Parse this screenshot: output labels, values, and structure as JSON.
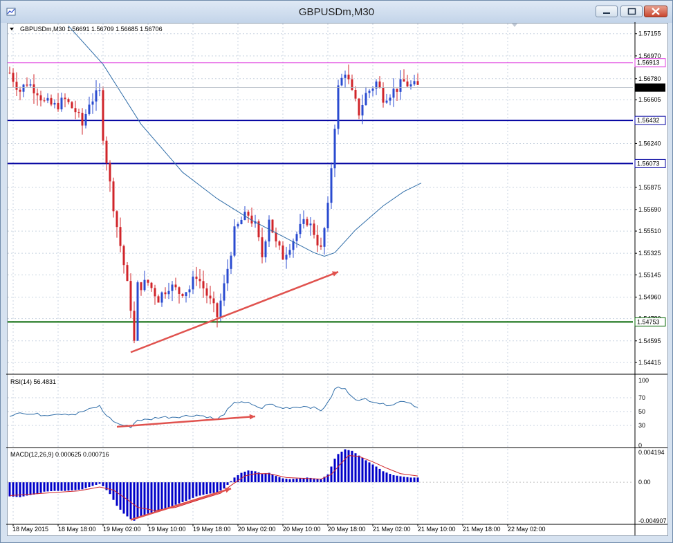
{
  "window": {
    "title": "GBPUSDm,M30"
  },
  "colors": {
    "bull": "#2a4bd0",
    "bear": "#d0242a",
    "ma": "#2f6da8",
    "magenta_level": "#e040e0",
    "blue_level": "#0000a0",
    "green_level": "#006400",
    "arrow": "#e0524e",
    "rsi": "#2f6da8",
    "macd_hist": "#0000c8",
    "macd_signal": "#d0242a",
    "grid": "#c8d3e0"
  },
  "chart_data": [
    {
      "type": "candlestick",
      "header": "GBPUSDm,M30  1.56691 1.56709 1.56685 1.56706",
      "ylim": [
        1.5434,
        1.5724
      ],
      "yticks": [
        "1.57155",
        "1.56970",
        "1.56780",
        "1.56605",
        "1.56240",
        "1.55875",
        "1.55690",
        "1.55510",
        "1.55325",
        "1.55145",
        "1.54960",
        "1.54780",
        "1.54595",
        "1.54415"
      ],
      "xticks": [
        "18 May 2015",
        "18 May 18:00",
        "19 May 02:00",
        "19 May 10:00",
        "19 May 18:00",
        "20 May 02:00",
        "20 May 10:00",
        "20 May 18:00",
        "21 May 02:00",
        "21 May 10:00",
        "21 May 18:00",
        "22 May 02:00"
      ],
      "candles_x_range": [
        0,
        118
      ],
      "close_path": [
        [
          0,
          1.5683
        ],
        [
          3,
          1.5668
        ],
        [
          5,
          1.5675
        ],
        [
          8,
          1.5668
        ],
        [
          10,
          1.5658
        ],
        [
          13,
          1.5655
        ],
        [
          16,
          1.566
        ],
        [
          19,
          1.5651
        ],
        [
          21,
          1.5639
        ],
        [
          23,
          1.5659
        ],
        [
          26,
          1.5666
        ],
        [
          27,
          1.5631
        ],
        [
          29,
          1.559
        ],
        [
          31,
          1.5555
        ],
        [
          33,
          1.5523
        ],
        [
          35,
          1.5488
        ],
        [
          36,
          1.5458
        ],
        [
          37,
          1.5505
        ],
        [
          40,
          1.5508
        ],
        [
          43,
          1.5495
        ],
        [
          46,
          1.5506
        ],
        [
          49,
          1.55
        ],
        [
          52,
          1.5503
        ],
        [
          54,
          1.5515
        ],
        [
          57,
          1.5498
        ],
        [
          60,
          1.548
        ],
        [
          62,
          1.5505
        ],
        [
          65,
          1.555
        ],
        [
          67,
          1.556
        ],
        [
          69,
          1.5565
        ],
        [
          71,
          1.5555
        ],
        [
          73,
          1.553
        ],
        [
          75,
          1.5563
        ],
        [
          77,
          1.554
        ],
        [
          79,
          1.553
        ],
        [
          81,
          1.554
        ],
        [
          84,
          1.5553
        ],
        [
          86,
          1.556
        ],
        [
          88,
          1.555
        ],
        [
          90,
          1.5535
        ],
        [
          92,
          1.557
        ],
        [
          94,
          1.564
        ],
        [
          95,
          1.567
        ],
        [
          97,
          1.5685
        ],
        [
          99,
          1.5665
        ],
        [
          101,
          1.565
        ],
        [
          103,
          1.5665
        ],
        [
          106,
          1.5675
        ],
        [
          108,
          1.5663
        ],
        [
          111,
          1.5668
        ],
        [
          114,
          1.5675
        ],
        [
          116,
          1.5672
        ],
        [
          118,
          1.5671
        ]
      ],
      "moving_average": [
        [
          17,
          1.5722
        ],
        [
          27,
          1.569
        ],
        [
          38,
          1.564
        ],
        [
          50,
          1.56
        ],
        [
          60,
          1.5578
        ],
        [
          70,
          1.556
        ],
        [
          80,
          1.5545
        ],
        [
          88,
          1.5533
        ],
        [
          91,
          1.553
        ],
        [
          94,
          1.5533
        ],
        [
          100,
          1.5552
        ],
        [
          108,
          1.5572
        ],
        [
          114,
          1.5584
        ],
        [
          119,
          1.5591
        ]
      ],
      "levels": [
        {
          "price": 1.56913,
          "label": "1.56913",
          "color": "magenta_level",
          "width": 1
        },
        {
          "price": 1.56432,
          "label": "1.56432",
          "color": "blue_level",
          "width": 2
        },
        {
          "price": 1.56073,
          "label": "1.56073",
          "color": "blue_level",
          "width": 2
        },
        {
          "price": 1.54753,
          "label": "1.54753",
          "color": "green_level",
          "width": 2
        }
      ],
      "current_price": {
        "price": 1.56706,
        "label": "1.56706"
      },
      "trendline": {
        "from": [
          35,
          1.545
        ],
        "to": [
          95,
          1.5517
        ]
      }
    },
    {
      "type": "line",
      "name": "RSI(14) 56.4831",
      "ylim": [
        0,
        100
      ],
      "yticks": [
        "100",
        "70",
        "50",
        "30",
        "0"
      ],
      "values_path": [
        [
          0,
          44
        ],
        [
          3,
          50
        ],
        [
          5,
          46
        ],
        [
          8,
          46
        ],
        [
          10,
          45
        ],
        [
          13,
          47
        ],
        [
          16,
          47
        ],
        [
          19,
          46
        ],
        [
          21,
          50
        ],
        [
          23,
          53
        ],
        [
          26,
          58
        ],
        [
          27,
          50
        ],
        [
          29,
          40
        ],
        [
          31,
          33
        ],
        [
          33,
          30
        ],
        [
          35,
          28
        ],
        [
          36,
          33
        ],
        [
          37,
          38
        ],
        [
          40,
          38
        ],
        [
          43,
          42
        ],
        [
          46,
          42
        ],
        [
          49,
          43
        ],
        [
          52,
          44
        ],
        [
          54,
          45
        ],
        [
          57,
          43
        ],
        [
          60,
          38
        ],
        [
          62,
          47
        ],
        [
          65,
          62
        ],
        [
          67,
          65
        ],
        [
          69,
          62
        ],
        [
          71,
          57
        ],
        [
          73,
          55
        ],
        [
          75,
          62
        ],
        [
          77,
          57
        ],
        [
          79,
          55
        ],
        [
          81,
          56
        ],
        [
          84,
          57
        ],
        [
          86,
          58
        ],
        [
          88,
          55
        ],
        [
          90,
          52
        ],
        [
          92,
          62
        ],
        [
          94,
          82
        ],
        [
          95,
          85
        ],
        [
          97,
          82
        ],
        [
          99,
          73
        ],
        [
          101,
          65
        ],
        [
          103,
          68
        ],
        [
          106,
          64
        ],
        [
          108,
          60
        ],
        [
          111,
          61
        ],
        [
          114,
          66
        ],
        [
          116,
          62
        ],
        [
          118,
          56
        ]
      ],
      "trendline": {
        "from": [
          31,
          28
        ],
        "to": [
          71,
          43
        ]
      }
    },
    {
      "type": "bar",
      "name": "MACD(12,26,9) 0.000625 0.000716",
      "ylim": [
        -0.0051,
        0.00425
      ],
      "yticks": [
        "0.004194",
        "0.00",
        "-0.004907"
      ],
      "histogram_path": [
        [
          0,
          -0.0018
        ],
        [
          3,
          -0.0019
        ],
        [
          5,
          -0.0017
        ],
        [
          8,
          -0.0015
        ],
        [
          10,
          -0.0012
        ],
        [
          13,
          -0.0011
        ],
        [
          16,
          -0.0011
        ],
        [
          19,
          -0.001
        ],
        [
          21,
          -0.0009
        ],
        [
          23,
          -0.0006
        ],
        [
          26,
          -0.0002
        ],
        [
          27,
          -0.0005
        ],
        [
          29,
          -0.0015
        ],
        [
          31,
          -0.003
        ],
        [
          33,
          -0.004
        ],
        [
          35,
          -0.0047
        ],
        [
          36,
          -0.0049
        ],
        [
          37,
          -0.0045
        ],
        [
          40,
          -0.004
        ],
        [
          43,
          -0.0036
        ],
        [
          46,
          -0.0032
        ],
        [
          49,
          -0.0027
        ],
        [
          52,
          -0.0022
        ],
        [
          54,
          -0.0018
        ],
        [
          57,
          -0.0015
        ],
        [
          60,
          -0.0013
        ],
        [
          62,
          -0.0008
        ],
        [
          65,
          0.0006
        ],
        [
          67,
          0.0012
        ],
        [
          69,
          0.0015
        ],
        [
          71,
          0.0014
        ],
        [
          73,
          0.0011
        ],
        [
          75,
          0.0012
        ],
        [
          77,
          0.0008
        ],
        [
          79,
          0.0005
        ],
        [
          81,
          0.0004
        ],
        [
          84,
          0.0005
        ],
        [
          86,
          0.0006
        ],
        [
          88,
          0.0005
        ],
        [
          90,
          0.0004
        ],
        [
          92,
          0.001
        ],
        [
          94,
          0.003
        ],
        [
          95,
          0.0036
        ],
        [
          97,
          0.0042
        ],
        [
          99,
          0.004
        ],
        [
          101,
          0.0034
        ],
        [
          103,
          0.0028
        ],
        [
          106,
          0.002
        ],
        [
          108,
          0.0014
        ],
        [
          111,
          0.0009
        ],
        [
          114,
          0.0007
        ],
        [
          116,
          0.0006
        ],
        [
          118,
          0.0006
        ]
      ],
      "signal_path": [
        [
          0,
          -0.0017
        ],
        [
          10,
          -0.0014
        ],
        [
          20,
          -0.0011
        ],
        [
          26,
          -0.0006
        ],
        [
          30,
          -0.001
        ],
        [
          34,
          -0.0022
        ],
        [
          37,
          -0.0032
        ],
        [
          42,
          -0.0036
        ],
        [
          48,
          -0.0032
        ],
        [
          55,
          -0.0022
        ],
        [
          61,
          -0.0014
        ],
        [
          64,
          -0.0004
        ],
        [
          68,
          0.0008
        ],
        [
          71,
          0.0011
        ],
        [
          75,
          0.0011
        ],
        [
          80,
          0.0006
        ],
        [
          85,
          0.0005
        ],
        [
          90,
          0.0004
        ],
        [
          93,
          0.001
        ],
        [
          96,
          0.0025
        ],
        [
          98,
          0.0034
        ],
        [
          101,
          0.0033
        ],
        [
          105,
          0.0026
        ],
        [
          109,
          0.0018
        ],
        [
          113,
          0.0011
        ],
        [
          118,
          0.0008
        ]
      ],
      "trendline": {
        "from": [
          35,
          -0.0048
        ],
        "to": [
          64,
          -0.0008
        ]
      }
    }
  ]
}
